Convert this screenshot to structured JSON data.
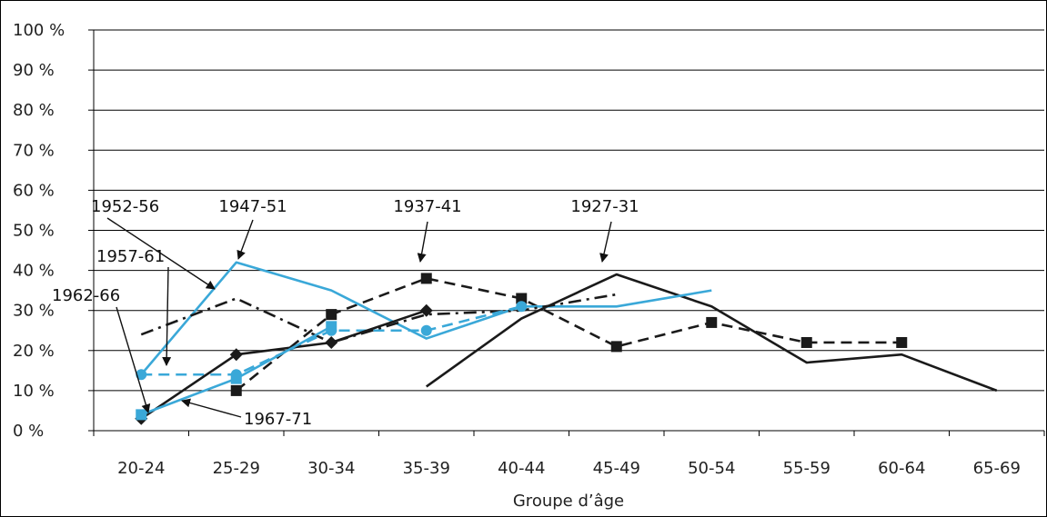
{
  "chart_data": {
    "type": "line",
    "xlabel": "Groupe d’âge",
    "ylabel": "",
    "ylim": [
      0,
      100
    ],
    "yticks": [
      "0 %",
      "10 %",
      "20 %",
      "30 %",
      "40 %",
      "50 %",
      "60 %",
      "70 %",
      "80 %",
      "90 %",
      "100 %"
    ],
    "categories": [
      "20-24",
      "25-29",
      "30-34",
      "35-39",
      "40-44",
      "45-49",
      "50-54",
      "55-59",
      "60-64",
      "65-69"
    ],
    "grid": "horizontal",
    "legend": "none",
    "series": [
      {
        "name": "1927-31",
        "color": "#1a1a1a",
        "style": "solid",
        "marker": "none",
        "values": [
          null,
          null,
          null,
          11,
          28,
          39,
          31,
          17,
          19,
          10
        ]
      },
      {
        "name": "1937-41",
        "color": "#1a1a1a",
        "style": "dashed",
        "marker": "square",
        "values": [
          null,
          10,
          29,
          38,
          33,
          21,
          27,
          22,
          22,
          null
        ]
      },
      {
        "name": "1947-51",
        "color": "#3aa8d8",
        "style": "solid",
        "marker": "none",
        "values": [
          14,
          42,
          35,
          23,
          31,
          31,
          35,
          null,
          null,
          null
        ]
      },
      {
        "name": "1952-56",
        "color": "#1a1a1a",
        "style": "dashdot",
        "marker": "none",
        "values": [
          24,
          33,
          22,
          29,
          30,
          34,
          null,
          null,
          null,
          null
        ]
      },
      {
        "name": "1957-61",
        "color": "#3aa8d8",
        "style": "dashed",
        "marker": "circle",
        "values": [
          14,
          14,
          25,
          25,
          31,
          null,
          null,
          null,
          null,
          null
        ]
      },
      {
        "name": "1962-66",
        "color": "#1a1a1a",
        "style": "solid",
        "marker": "diamond",
        "values": [
          3,
          19,
          22,
          30,
          null,
          null,
          null,
          null,
          null,
          null
        ]
      },
      {
        "name": "1967-71",
        "color": "#3aa8d8",
        "style": "solid",
        "marker": "square",
        "values": [
          4,
          13,
          26,
          null,
          null,
          null,
          null,
          null,
          null,
          null
        ]
      }
    ],
    "annotations": [
      {
        "text": "1927-31",
        "series": "1927-31"
      },
      {
        "text": "1937-41",
        "series": "1937-41"
      },
      {
        "text": "1947-51",
        "series": "1947-51"
      },
      {
        "text": "1952-56",
        "series": "1952-56"
      },
      {
        "text": "1957-61",
        "series": "1957-61"
      },
      {
        "text": "1962-66",
        "series": "1962-66"
      },
      {
        "text": "1967-71",
        "series": "1967-71"
      }
    ]
  }
}
